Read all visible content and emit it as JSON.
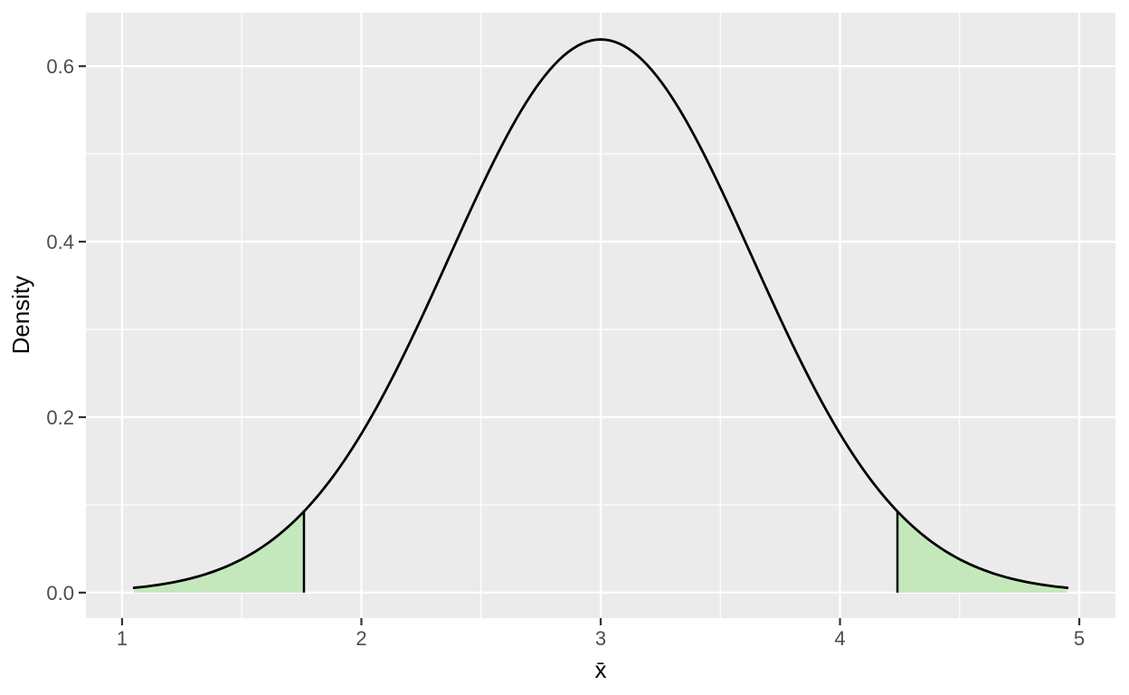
{
  "chart_data": {
    "type": "area",
    "title": "",
    "xlabel": "x̄",
    "ylabel": "Density",
    "curve": {
      "distribution": "normal",
      "mean": 3,
      "sd": 0.633,
      "peak_density": 0.6305,
      "x_start": 1.05,
      "x_end": 4.95
    },
    "shaded_tails": {
      "lower_cutoff": 1.76,
      "upper_cutoff": 4.24,
      "description": "green shaded rejection/tail regions under the curve"
    },
    "x_ticks": [
      1,
      2,
      3,
      4,
      5
    ],
    "x_minor_gridlines": [
      1.5,
      2.5,
      3.5,
      4.5
    ],
    "y_ticks": [
      0.0,
      0.2,
      0.4,
      0.6
    ],
    "y_tick_labels": [
      "0.0",
      "0.2",
      "0.4",
      "0.6"
    ],
    "y_minor_gridlines": [
      0.1,
      0.3,
      0.5
    ],
    "xlim": [
      0.849,
      5.151
    ],
    "ylim": [
      -0.029,
      0.661
    ],
    "grid": true,
    "legend": "none",
    "colors": {
      "panel_background": "#EBEBEB",
      "gridline": "#FFFFFF",
      "curve_stroke": "#000000",
      "tail_fill": "#C4E8BC",
      "cutoff_line": "#000000",
      "tick_mark": "#333333",
      "tick_label": "#4D4D4D",
      "axis_title": "#000000"
    }
  }
}
